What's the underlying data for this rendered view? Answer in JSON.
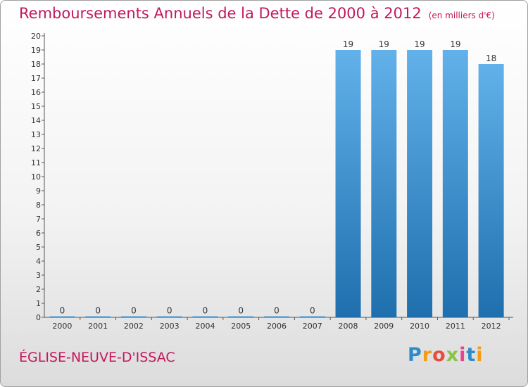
{
  "header": {
    "title": "Remboursements Annuels de la Dette de 2000 à 2012",
    "unit": "(en milliers d'€)"
  },
  "footer": {
    "commune": "ÉGLISE-NEUVE-D'ISSAC",
    "logo_letters": [
      "P",
      "r",
      "o",
      "x",
      "i",
      "t",
      "i"
    ],
    "logo_colors": [
      "#2e8bc9",
      "#f39c12",
      "#e74c3c",
      "#8bc34a",
      "#e84393",
      "#2e8bc9",
      "#f39c12"
    ]
  },
  "colors": {
    "bar_top": "#62b1ea",
    "bar_bottom": "#1f6fae",
    "title": "#c2185b"
  },
  "chart_data": {
    "type": "bar",
    "title": "Remboursements Annuels de la Dette de 2000 à 2012",
    "xlabel": "",
    "ylabel": "",
    "categories": [
      "2000",
      "2001",
      "2002",
      "2003",
      "2004",
      "2005",
      "2006",
      "2007",
      "2008",
      "2009",
      "2010",
      "2011",
      "2012"
    ],
    "values": [
      0,
      0,
      0,
      0,
      0,
      0,
      0,
      0,
      19,
      19,
      19,
      19,
      18
    ],
    "value_labels": [
      "0",
      "0",
      "0",
      "0",
      "0",
      "0",
      "0",
      "0",
      "19",
      "19",
      "19",
      "19",
      "18"
    ],
    "ylim": [
      0,
      20
    ],
    "yticks": [
      "0",
      "1",
      "2",
      "3",
      "4",
      "5",
      "6",
      "7",
      "8",
      "9",
      "10",
      "11",
      "12",
      "13",
      "14",
      "15",
      "16",
      "17",
      "18",
      "19",
      "20"
    ],
    "grid": false,
    "legend": "none"
  }
}
